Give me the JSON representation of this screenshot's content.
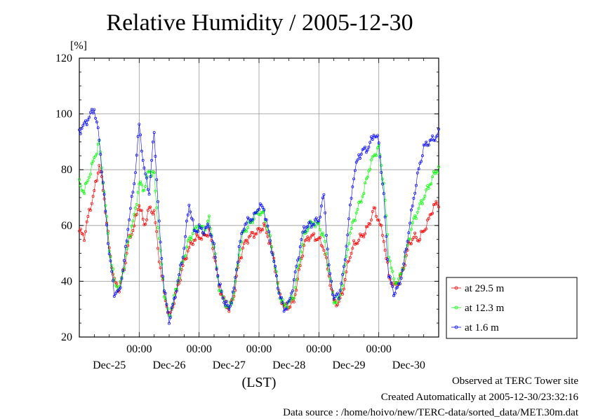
{
  "title": "Relative Humidity / 2005-12-30",
  "chart_data": {
    "type": "line",
    "title": "Relative Humidity / 2005-12-30",
    "ylabel": "[%]",
    "xlabel": "(LST)",
    "ylim": [
      20,
      120
    ],
    "yticks": [
      20,
      40,
      60,
      80,
      100,
      120
    ],
    "xlim": [
      0,
      144
    ],
    "time_label_positions": [
      24,
      48,
      72,
      96,
      120
    ],
    "time_labels": [
      "00:00",
      "00:00",
      "00:00",
      "00:00",
      "00:00"
    ],
    "date_label_positions": [
      12,
      36,
      60,
      84,
      108,
      132
    ],
    "date_labels": [
      "Dec-25",
      "Dec-26",
      "Dec-27",
      "Dec-28",
      "Dec-29",
      "Dec-30"
    ],
    "grid": true,
    "legend_position": "right",
    "keyframes": {
      "x": [
        0,
        2,
        4,
        6,
        8,
        10,
        12,
        14,
        16,
        18,
        20,
        22,
        24,
        26,
        28,
        30,
        32,
        34,
        36,
        38,
        40,
        42,
        44,
        46,
        48,
        50,
        52,
        54,
        56,
        58,
        60,
        62,
        64,
        66,
        68,
        70,
        72,
        74,
        76,
        78,
        80,
        82,
        84,
        86,
        88,
        90,
        92,
        94,
        96,
        98,
        100,
        102,
        104,
        106,
        108,
        110,
        112,
        114,
        116,
        118,
        120,
        122,
        124,
        126,
        128,
        130,
        132,
        134,
        136,
        138,
        140,
        142,
        144
      ],
      "at_29_5": [
        58,
        56,
        65,
        72,
        82,
        70,
        52,
        40,
        37,
        45,
        55,
        60,
        68,
        60,
        66,
        65,
        48,
        36,
        27,
        33,
        40,
        47,
        52,
        55,
        56,
        56,
        58,
        50,
        38,
        33,
        30,
        35,
        47,
        53,
        56,
        57,
        58,
        60,
        55,
        48,
        36,
        31,
        31,
        33,
        43,
        53,
        56,
        56,
        55,
        52,
        42,
        33,
        32,
        38,
        48,
        53,
        55,
        57,
        60,
        66,
        62,
        55,
        42,
        38,
        40,
        45,
        53,
        56,
        55,
        58,
        62,
        67,
        68
      ],
      "at_12_3": [
        75,
        72,
        78,
        84,
        90,
        72,
        52,
        40,
        37,
        46,
        56,
        63,
        75,
        73,
        80,
        78,
        55,
        36,
        27,
        34,
        42,
        49,
        55,
        58,
        60,
        58,
        62,
        52,
        38,
        33,
        30,
        36,
        50,
        58,
        60,
        63,
        65,
        64,
        57,
        48,
        36,
        31,
        32,
        35,
        46,
        56,
        60,
        61,
        60,
        56,
        44,
        33,
        33,
        42,
        55,
        62,
        67,
        72,
        80,
        85,
        88,
        75,
        50,
        40,
        40,
        46,
        55,
        62,
        66,
        70,
        74,
        78,
        81
      ],
      "at_1_6": [
        94,
        96,
        99,
        102,
        91,
        70,
        50,
        36,
        36,
        47,
        63,
        75,
        96,
        80,
        72,
        94,
        60,
        37,
        26,
        33,
        42,
        52,
        68,
        58,
        59,
        58,
        60,
        52,
        39,
        33,
        30,
        37,
        52,
        60,
        62,
        63,
        67,
        66,
        57,
        47,
        36,
        30,
        32,
        40,
        50,
        59,
        60,
        61,
        62,
        71,
        45,
        34,
        35,
        44,
        62,
        78,
        85,
        87,
        88,
        93,
        90,
        70,
        42,
        36,
        38,
        46,
        58,
        70,
        80,
        88,
        90,
        91,
        93
      ]
    },
    "series": [
      {
        "name": "at 29.5 m",
        "color": "#ff0000",
        "key": "at_29_5"
      },
      {
        "name": "at 12.3 m",
        "color": "#00ff00",
        "key": "at_12_3"
      },
      {
        "name": "at 1.6 m",
        "color": "#0000ff",
        "key": "at_1_6"
      }
    ]
  },
  "footer": {
    "line1": "Observed at TERC Tower site",
    "line2": "Created Automatically at 2005-12-30/23:32:16",
    "line3": "Data source : /home/hoivo/new/TERC-data/sorted_data/MET.30m.dat"
  }
}
